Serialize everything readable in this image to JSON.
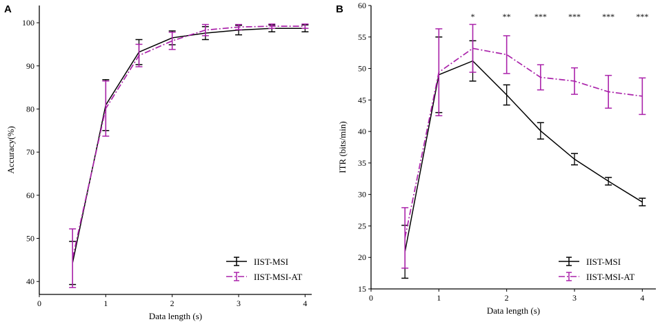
{
  "chart_data": [
    {
      "panel": "A",
      "type": "line",
      "xlabel": "Data length (s)",
      "ylabel": "Accuracy(%)",
      "xlim": [
        0,
        4.1
      ],
      "ylim": [
        37,
        104
      ],
      "xticks": [
        0,
        1,
        2,
        3,
        4
      ],
      "yticks": [
        40,
        50,
        60,
        70,
        80,
        90,
        100
      ],
      "legend_position": "bottom-right",
      "series": [
        {
          "name": "IIST-MSI",
          "color": "#000000",
          "dash": "solid",
          "x": [
            0.5,
            1.0,
            1.5,
            2.0,
            2.5,
            3.0,
            3.5,
            4.0
          ],
          "y": [
            44.3,
            80.9,
            93.2,
            96.5,
            97.6,
            98.3,
            98.7,
            98.7
          ],
          "err": [
            5.0,
            5.9,
            2.9,
            1.6,
            1.5,
            1.1,
            0.8,
            0.8
          ]
        },
        {
          "name": "IIST-MSI-AT",
          "color": "#aa22aa",
          "dash": "dashdot",
          "x": [
            0.5,
            1.0,
            1.5,
            2.0,
            2.5,
            3.0,
            3.5,
            4.0
          ],
          "y": [
            45.4,
            80.1,
            92.4,
            95.8,
            98.3,
            99.0,
            99.2,
            99.2
          ],
          "err": [
            6.8,
            6.4,
            2.6,
            2.0,
            1.3,
            0.6,
            0.5,
            0.5
          ]
        }
      ],
      "annotations": []
    },
    {
      "panel": "B",
      "type": "line",
      "xlabel": "Data length (s)",
      "ylabel": "ITR (bits/min)",
      "xlim": [
        0,
        4.2
      ],
      "ylim": [
        15,
        60
      ],
      "xticks": [
        0,
        1,
        2,
        3,
        4
      ],
      "yticks": [
        15,
        20,
        25,
        30,
        35,
        40,
        45,
        50,
        55,
        60
      ],
      "legend_position": "bottom-right",
      "series": [
        {
          "name": "IIST-MSI",
          "color": "#000000",
          "dash": "solid",
          "x": [
            0.5,
            1.0,
            1.5,
            2.0,
            2.5,
            3.0,
            3.5,
            4.0
          ],
          "y": [
            20.9,
            49.0,
            51.2,
            45.8,
            40.1,
            35.6,
            32.1,
            28.8
          ],
          "err": [
            4.2,
            6.0,
            3.2,
            1.6,
            1.3,
            0.9,
            0.6,
            0.6
          ]
        },
        {
          "name": "IIST-MSI-AT",
          "color": "#aa22aa",
          "dash": "dashdot",
          "x": [
            0.5,
            1.0,
            1.5,
            2.0,
            2.5,
            3.0,
            3.5,
            4.0
          ],
          "y": [
            23.1,
            49.4,
            53.2,
            52.2,
            48.6,
            48.0,
            46.3,
            45.6
          ],
          "err": [
            4.8,
            6.9,
            3.8,
            3.0,
            2.0,
            2.1,
            2.6,
            2.9
          ]
        }
      ],
      "annotations": [
        {
          "x": 1.5,
          "text": "*"
        },
        {
          "x": 2.0,
          "text": "**"
        },
        {
          "x": 2.5,
          "text": "***"
        },
        {
          "x": 3.0,
          "text": "***"
        },
        {
          "x": 3.5,
          "text": "***"
        },
        {
          "x": 4.0,
          "text": "***"
        }
      ]
    }
  ]
}
